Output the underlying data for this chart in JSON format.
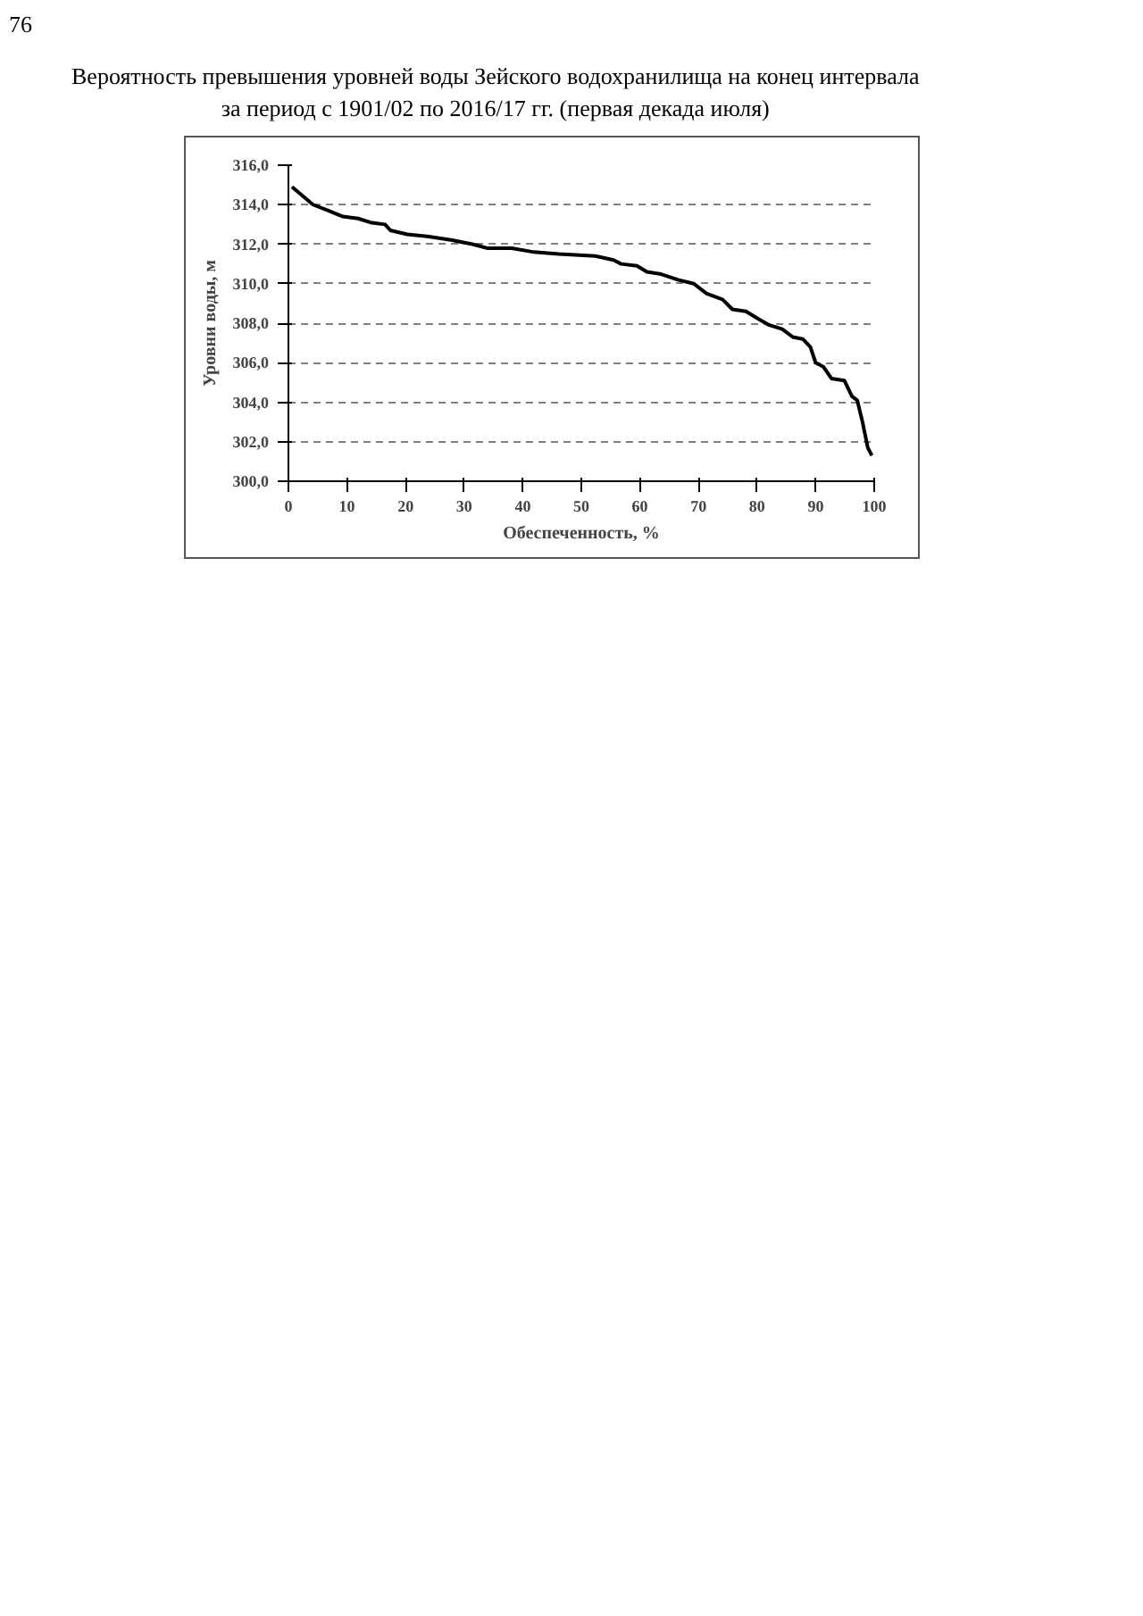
{
  "chart_data": {
    "type": "line",
    "title": "Вероятность превышения уровней воды Зейского водохранилища на конец интервала\nза период с 1901/02 по 2016/17 гг. (первая декада июля)",
    "xlabel": "Обеспеченность, %",
    "ylabel": "Уровни воды, м",
    "annotations": [
      "76"
    ],
    "series": [
      {
        "color": "#000000",
        "x": [
          0.6,
          4.2,
          6.8,
          9.3,
          11.9,
          14,
          16.5,
          17.4,
          20.3,
          23.7,
          28,
          31.4,
          33.9,
          38.1,
          41.9,
          46.2,
          52.4,
          55.5,
          56.8,
          59.5,
          61.2,
          63.4,
          66.5,
          69.2,
          71.4,
          74.1,
          75.8,
          78.1,
          80.3,
          82.1,
          84.3,
          86.1,
          87.8,
          89.1,
          90.0,
          91.3,
          92.7,
          94.9,
          96.2,
          97.1,
          98.0,
          98.9,
          99.6
        ],
        "values": [
          314.9,
          314.0,
          313.7,
          313.4,
          313.3,
          313.1,
          313.0,
          312.7,
          312.5,
          312.4,
          312.2,
          312.0,
          311.8,
          311.8,
          311.6,
          311.5,
          311.4,
          311.2,
          311.0,
          310.9,
          310.6,
          310.5,
          310.2,
          310.0,
          309.5,
          309.2,
          308.7,
          308.6,
          308.2,
          307.9,
          307.7,
          307.3,
          307.2,
          306.8,
          306.0,
          305.8,
          305.2,
          305.1,
          304.3,
          304.1,
          303.0,
          301.7,
          301.3
        ]
      }
    ],
    "xlim": [
      0,
      100
    ],
    "xticks": [
      0,
      10,
      20,
      30,
      40,
      50,
      60,
      70,
      80,
      90,
      100
    ],
    "ylim": [
      300,
      316
    ],
    "yticks": [
      {
        "value": 300,
        "label": "300,0"
      },
      {
        "value": 302,
        "label": "302,0"
      },
      {
        "value": 304,
        "label": "304,0"
      },
      {
        "value": 306,
        "label": "306,0"
      },
      {
        "value": 308,
        "label": "308,0"
      },
      {
        "value": 310,
        "label": "310,0"
      },
      {
        "value": 312,
        "label": "312,0"
      },
      {
        "value": 314,
        "label": "314,0"
      },
      {
        "value": 316,
        "label": "316,0"
      }
    ],
    "grid": "y",
    "marker": "none",
    "line_style": "solid"
  }
}
